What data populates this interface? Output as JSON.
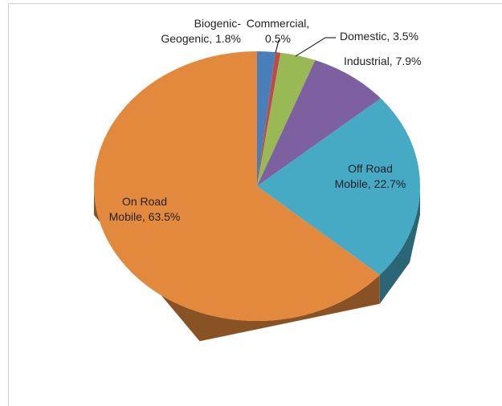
{
  "chart_data": {
    "type": "pie",
    "categories": [
      "Biogenic-\nGeogenic, 1.8%",
      "Commercial,\n0.5%",
      "Domestic, 3.5%",
      "Industrial, 7.9%",
      "Off Road\nMobile, 22.7%",
      "On Road\nMobile, 63.5%"
    ],
    "values": [
      1.8,
      0.5,
      3.5,
      7.9,
      22.7,
      63.5
    ],
    "colors": [
      "#4a7ebb",
      "#be4b48",
      "#98b954",
      "#7d60a0",
      "#46aac5",
      "#e3893e"
    ]
  }
}
